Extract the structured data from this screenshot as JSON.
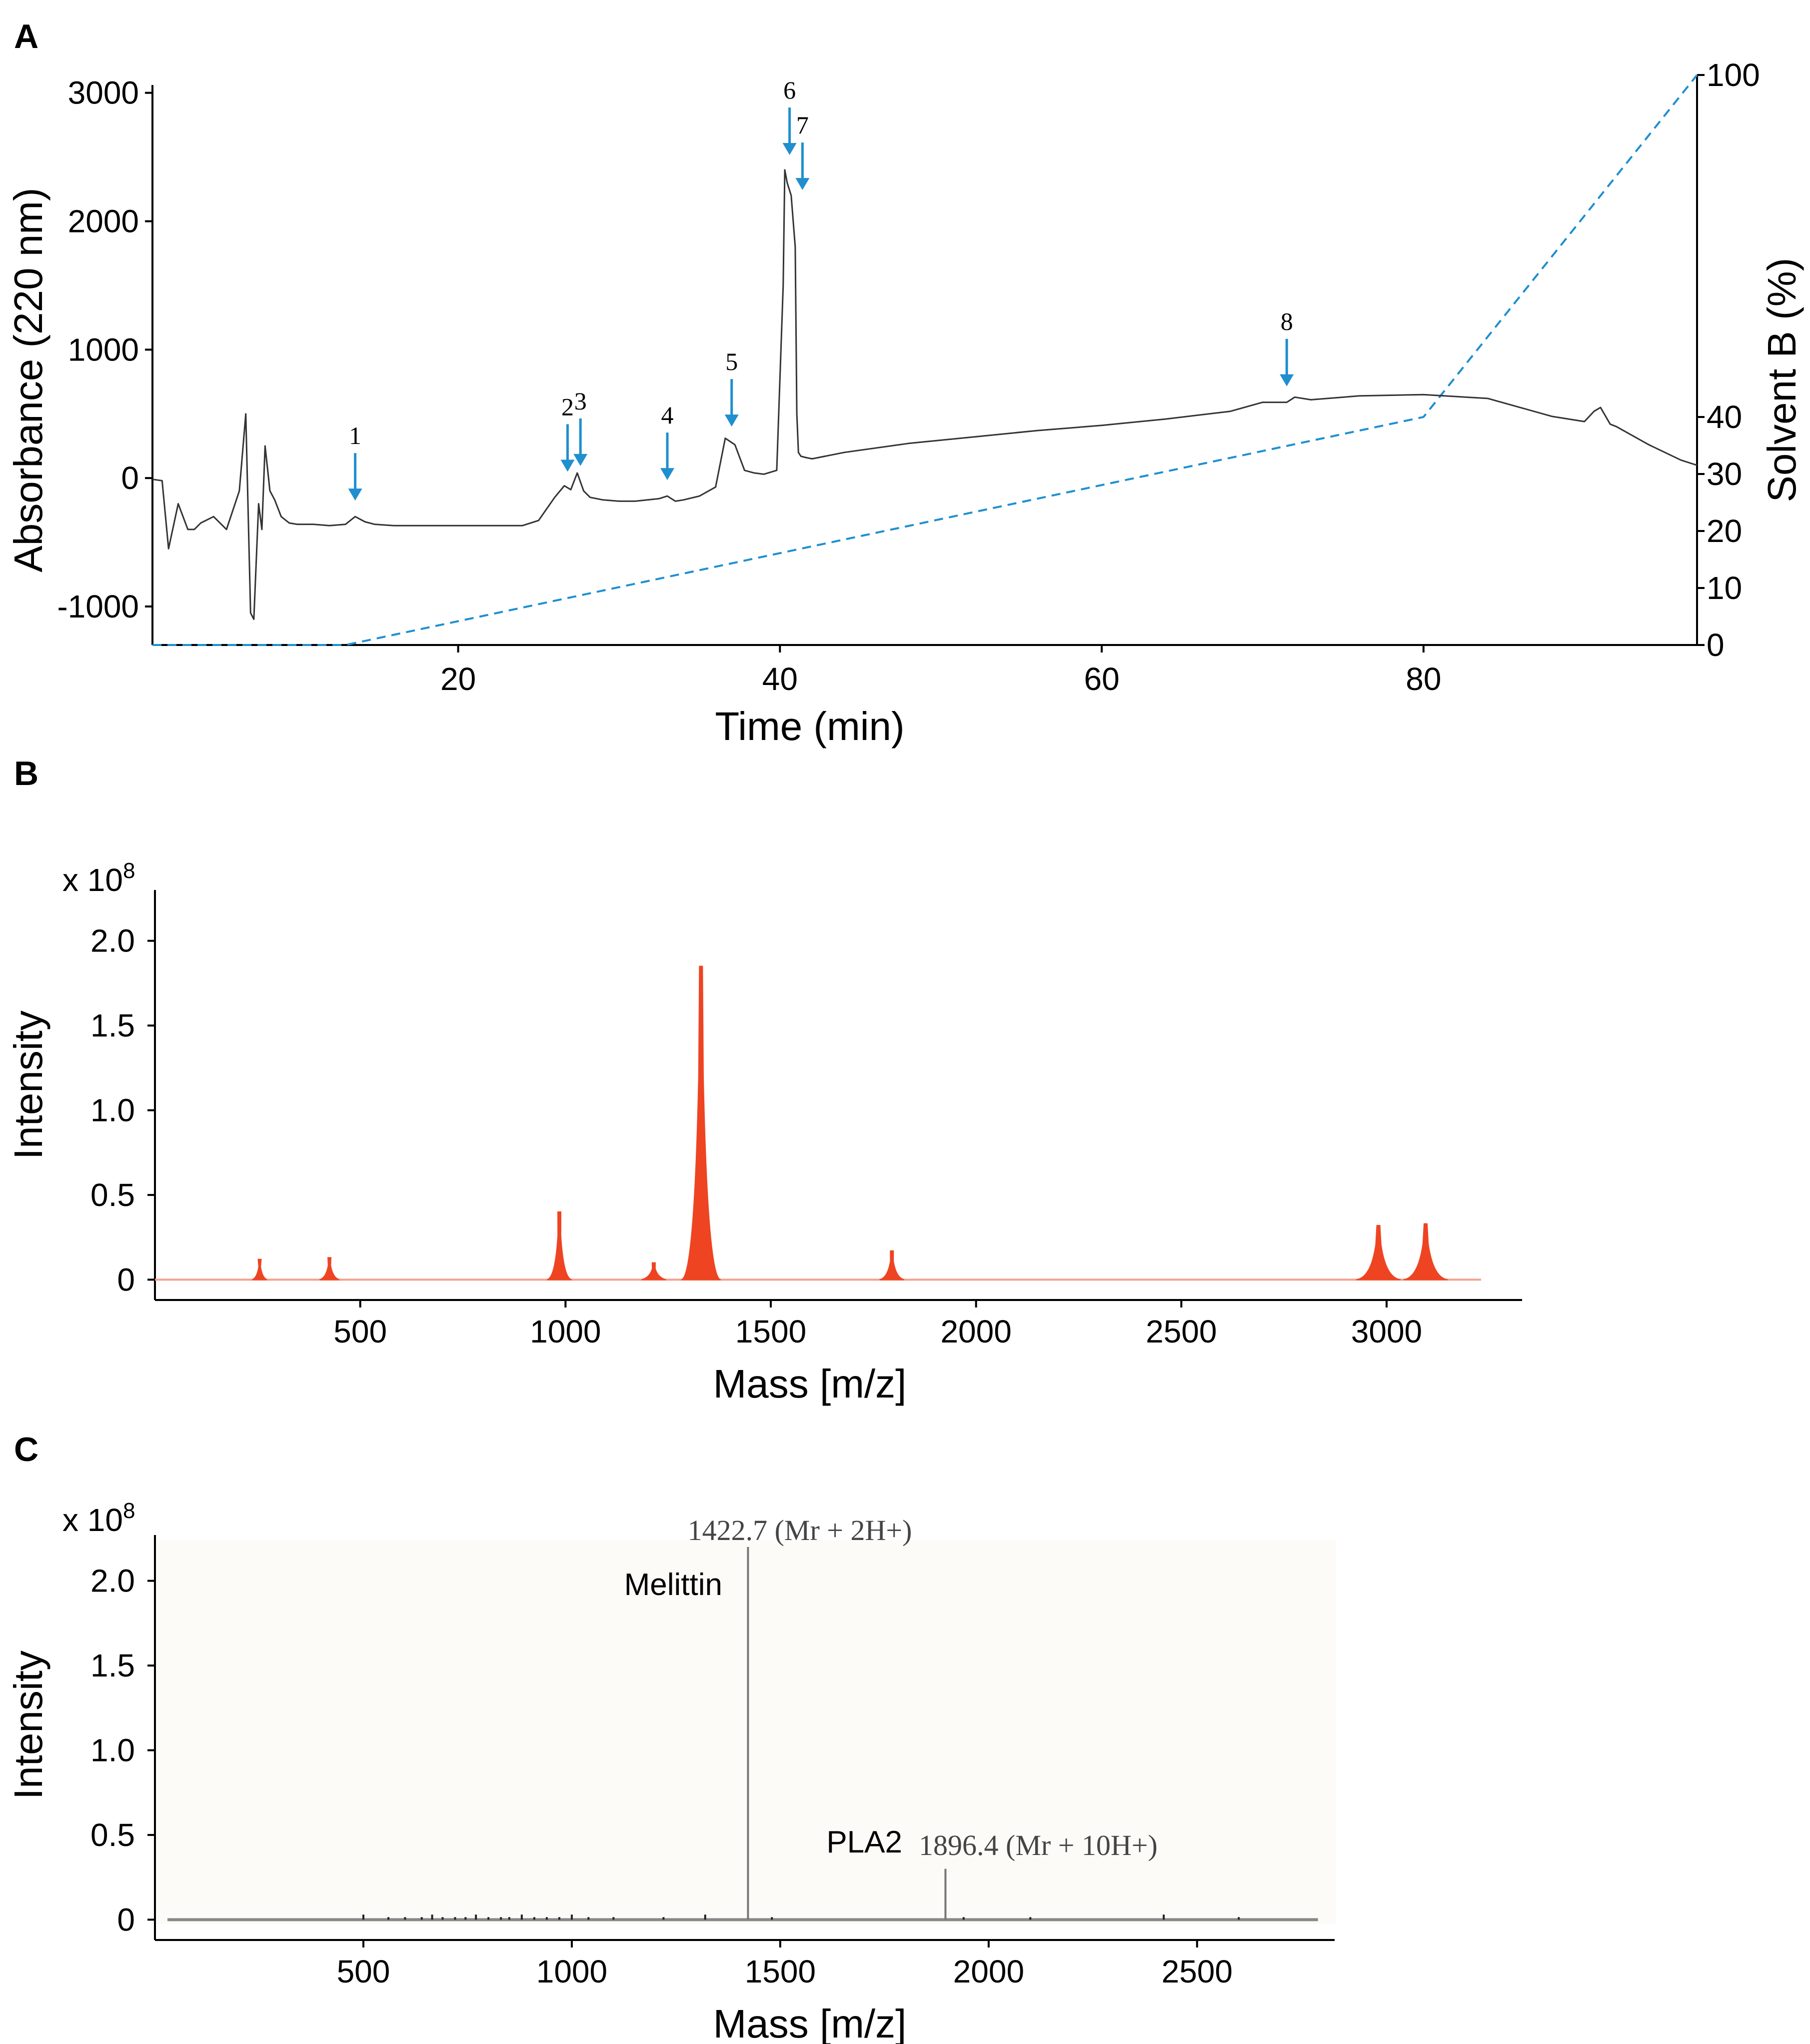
{
  "figure": {
    "colors": {
      "trace": "#333333",
      "gradient": "#1f8fcf",
      "arrow": "#1f8fcf",
      "ms_peak": "#ee4422",
      "ms_peak_light": "#f7a08a",
      "axis": "#000000"
    }
  },
  "chart_data": [
    {
      "panel": "A",
      "type": "line",
      "xlabel": "Time (min)",
      "ylabel": "Absorbance (220 nm)",
      "y2label": "Solvent  B (%)",
      "xlim": [
        1,
        97
      ],
      "ylim": [
        -1300,
        3100
      ],
      "y2lim": [
        0,
        100
      ],
      "xticks": [
        "20",
        "40",
        "60",
        "80"
      ],
      "yticks": [
        "3000",
        "2000",
        "1000",
        "0",
        "-1000"
      ],
      "y2ticks": [
        "100",
        "40",
        "30",
        "20",
        "10",
        "0"
      ],
      "series": [
        {
          "name": "Absorbance (220 nm)",
          "x": [
            1,
            1.6,
            2,
            2.6,
            3.2,
            3.6,
            4,
            4.8,
            5.6,
            6.4,
            6.8,
            7.1,
            7.3,
            7.6,
            7.8,
            8,
            8.3,
            8.6,
            9,
            9.5,
            10,
            11,
            12,
            13,
            13.6,
            14.2,
            14.8,
            16,
            20,
            24,
            25,
            26,
            26.6,
            27,
            27.4,
            27.8,
            28.2,
            29,
            30,
            31,
            32.5,
            33,
            33.5,
            34,
            35,
            36,
            36.6,
            37.2,
            37.8,
            38.4,
            39,
            39.8,
            40.2,
            40.3,
            40.45,
            40.7,
            40.95,
            41.05,
            41.15,
            41.3,
            41.6,
            42,
            44,
            48,
            52,
            56,
            60,
            64,
            68,
            70,
            71.5,
            72,
            73,
            76,
            80,
            84,
            88,
            90,
            90.6,
            91,
            91.6,
            92,
            94,
            96,
            97
          ],
          "y": [
            -10,
            -20,
            -550,
            -200,
            -400,
            -400,
            -350,
            -300,
            -400,
            -100,
            500,
            -1050,
            -1100,
            -200,
            -400,
            250,
            -100,
            -170,
            -300,
            -350,
            -360,
            -360,
            -370,
            -360,
            -300,
            -340,
            -360,
            -370,
            -370,
            -370,
            -330,
            -150,
            -60,
            -90,
            40,
            -100,
            -150,
            -170,
            -180,
            -180,
            -160,
            -140,
            -180,
            -170,
            -140,
            -70,
            310,
            260,
            60,
            40,
            30,
            60,
            1500,
            2400,
            2300,
            2200,
            1800,
            500,
            200,
            170,
            160,
            150,
            200,
            270,
            320,
            370,
            410,
            460,
            520,
            590,
            590,
            630,
            610,
            640,
            650,
            620,
            480,
            440,
            520,
            550,
            420,
            400,
            260,
            140,
            100
          ]
        },
        {
          "name": "Solvent B (%)",
          "x": [
            1,
            13,
            80,
            97
          ],
          "y": [
            0,
            0,
            40,
            100
          ]
        }
      ],
      "annotations": [
        {
          "label": "1",
          "x": 13.6
        },
        {
          "label": "2",
          "x": 26.8
        },
        {
          "label": "3",
          "x": 27.6
        },
        {
          "label": "4",
          "x": 33
        },
        {
          "label": "5",
          "x": 37
        },
        {
          "label": "6",
          "x": 40.6
        },
        {
          "label": "7",
          "x": 41.4
        },
        {
          "label": "8",
          "x": 71.5
        }
      ]
    },
    {
      "panel": "B",
      "type": "line",
      "xlabel": "Mass [m/z]",
      "ylabel": "Intensity",
      "yscale_label": "x 10",
      "yscale_exp": "8",
      "xlim": [
        0,
        3330
      ],
      "ylim": [
        -0.12,
        2.3
      ],
      "xticks": [
        "500",
        "1000",
        "1500",
        "2000",
        "2500",
        "3000"
      ],
      "yticks": [
        "2.0",
        "1.5",
        "1.0",
        "0.5",
        "0"
      ],
      "peaks": [
        {
          "mz": 255,
          "intensity": 0.12,
          "width": 6
        },
        {
          "mz": 425,
          "intensity": 0.13,
          "width": 8
        },
        {
          "mz": 985,
          "intensity": 0.4,
          "width": 10
        },
        {
          "mz": 1215,
          "intensity": 0.1,
          "width": 10
        },
        {
          "mz": 1330,
          "intensity": 1.85,
          "width": 16
        },
        {
          "mz": 1795,
          "intensity": 0.17,
          "width": 10
        },
        {
          "mz": 2980,
          "intensity": 0.32,
          "width": 18
        },
        {
          "mz": 3095,
          "intensity": 0.33,
          "width": 18
        }
      ]
    },
    {
      "panel": "C",
      "type": "bar",
      "xlabel": "Mass [m/z]",
      "ylabel": "Intensity",
      "yscale_label": "x 10",
      "yscale_exp": "8",
      "xlim": [
        0,
        2830
      ],
      "ylim": [
        -0.12,
        2.3
      ],
      "xticks": [
        "500",
        "1000",
        "1500",
        "2000",
        "2500"
      ],
      "yticks": [
        "2.0",
        "1.5",
        "1.0",
        "0.5",
        "0"
      ],
      "peaks": [
        {
          "mz": 1422.7,
          "intensity": 2.2
        },
        {
          "mz": 1896.4,
          "intensity": 0.3
        }
      ],
      "labels": [
        {
          "text": "1422.7 (Mr + 2H+)",
          "mz": 1422.7
        },
        {
          "text": "Melittin",
          "mz": 1422.7
        },
        {
          "text": "PLA2",
          "mz": 1896.4
        },
        {
          "text": "1896.4 (Mr + 10H+)",
          "mz": 1896.4
        }
      ]
    }
  ]
}
